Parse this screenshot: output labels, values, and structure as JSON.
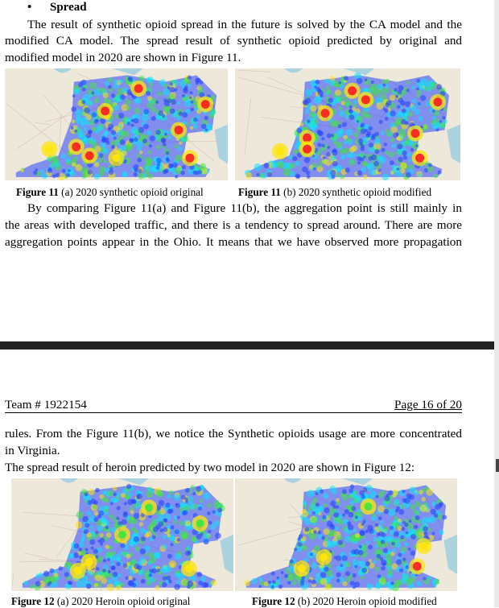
{
  "top_page": {
    "heading": "Spread",
    "para1": [
      "The result of synthetic opioid spread in the future is solved by the CA model and the",
      "modified CA model. The spread result of synthetic opioid predicted by original and",
      "modified model in 2020 are shown in Figure 11."
    ],
    "fig11a_caption_label": "Figure 11",
    "fig11a_caption_text": " (a) 2020 synthetic opioid original",
    "fig11b_caption_label": "Figure 11",
    "fig11b_caption_text": " (b) 2020 synthetic opioid modified",
    "para2": [
      "By comparing Figure 11(a) and Figure 11(b), the aggregation point is still mainly in",
      "the areas with developed traffic, and there is a tendency to spread around. There are more",
      "aggregation points appear in the Ohio. It means that we have observed more propagation"
    ]
  },
  "bottom_page": {
    "header_left": "Team # 1922154",
    "header_right": "Page 16 of 20",
    "para1": [
      "rules. From the Figure 11(b), we notice the Synthetic opioids usage are more concentrated",
      "in Virginia."
    ],
    "para2": "The spread result of heroin predicted by two model in 2020 are shown in Figure 12:",
    "fig12a_caption_label": "Figure 12",
    "fig12a_caption_text": " (a) 2020 Heroin opioid original",
    "fig12b_caption_label": "Figure 12",
    "fig12b_caption_text": " (b) 2020 Heroin opioid modified"
  },
  "colors": {
    "separator": "#222222",
    "map_land": "#ede8da",
    "map_water": "#aad3df",
    "heat_blue": "#1e3cff",
    "heat_cyan": "#00e5ff",
    "heat_green": "#39e639",
    "heat_yellow": "#ffe600",
    "heat_red": "#ff1a1a"
  }
}
